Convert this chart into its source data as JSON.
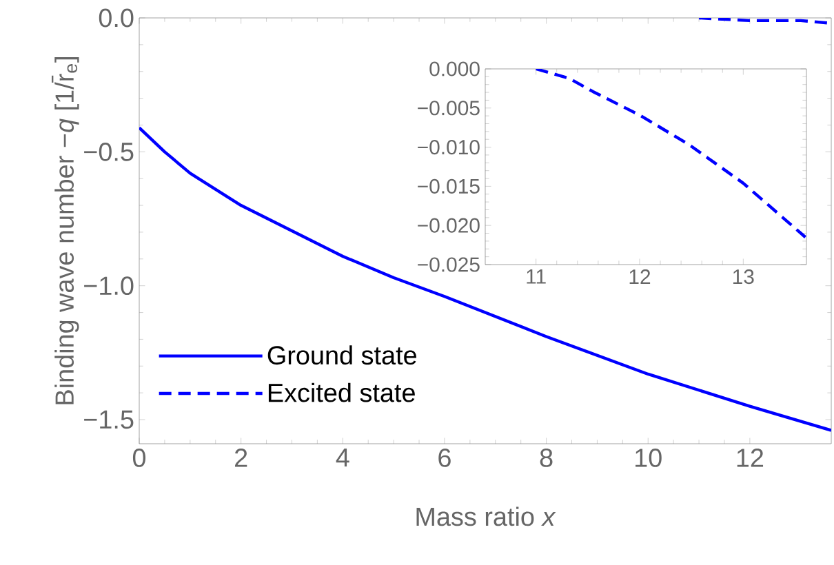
{
  "chart_data": [
    {
      "type": "line",
      "xlabel": "Mass ratio *x*",
      "ylabel": "Binding wave number −*q* [1/r̄$_{e}$]",
      "xlim": [
        0,
        13.6
      ],
      "ylim": [
        -1.59,
        0.0
      ],
      "xticks": [
        0,
        2,
        4,
        6,
        8,
        10,
        12
      ],
      "yticks": [
        {
          "value": 0.0,
          "label": "0.0"
        },
        {
          "value": -0.5,
          "label": "−0.5"
        },
        {
          "value": -1.0,
          "label": "−1.0"
        },
        {
          "value": -1.5,
          "label": "−1.5"
        }
      ],
      "legend": "bottom left",
      "series": [
        {
          "name": "Ground state",
          "color": "#0000ff",
          "line_style": "solid",
          "x": [
            0,
            0.5,
            1,
            2,
            4,
            5,
            6,
            8,
            10,
            12,
            13.6
          ],
          "values": [
            -0.41,
            -0.5,
            -0.58,
            -0.7,
            -0.89,
            -0.97,
            -1.04,
            -1.19,
            -1.33,
            -1.45,
            -1.54
          ]
        },
        {
          "name": "Excited state",
          "color": "#0000ff",
          "line_style": "dashed",
          "x": [
            11.0,
            12.0,
            13.0,
            13.6
          ],
          "values": [
            0.0,
            -0.01,
            -0.01,
            -0.02
          ]
        }
      ]
    },
    {
      "type": "line",
      "xlim": [
        10.51,
        13.61
      ],
      "ylim": [
        -0.025,
        0.0
      ],
      "xticks": [
        11,
        12,
        13
      ],
      "yticks": [
        {
          "value": 0.0,
          "label": "0.000"
        },
        {
          "value": -0.005,
          "label": "−0.005"
        },
        {
          "value": -0.01,
          "label": "−0.010"
        },
        {
          "value": -0.015,
          "label": "−0.015"
        },
        {
          "value": -0.02,
          "label": "−0.020"
        },
        {
          "value": -0.025,
          "label": "−0.025"
        }
      ],
      "series": [
        {
          "color": "#0000ff",
          "line_style": "dashed",
          "x": [
            11.0,
            11.32,
            11.55,
            12.0,
            12.48,
            13.0,
            13.6
          ],
          "values": [
            0.0,
            -0.0012,
            -0.0029,
            -0.0059,
            -0.0097,
            -0.0146,
            -0.0215
          ]
        }
      ]
    }
  ]
}
